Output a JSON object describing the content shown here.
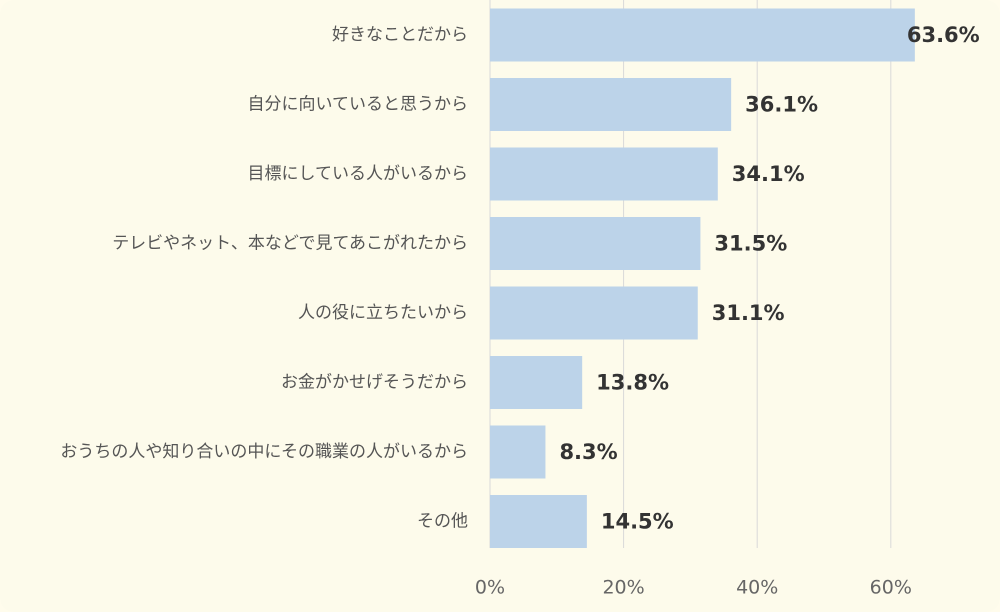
{
  "chart_data": {
    "type": "bar",
    "orientation": "horizontal",
    "categories": [
      "好きなことだから",
      "自分に向いていると思うから",
      "目標にしている人がいるから",
      "テレビやネット、本などで見てあこがれたから",
      "人の役に立ちたいから",
      "お金がかせげそうだから",
      "おうちの人や知り合いの中にその職業の人がいるから",
      "その他"
    ],
    "values": [
      63.6,
      36.1,
      34.1,
      31.5,
      31.1,
      13.8,
      8.3,
      14.5
    ],
    "value_labels": [
      "63.6%",
      "36.1%",
      "34.1%",
      "31.5%",
      "31.1%",
      "13.8%",
      "8.3%",
      "14.5%"
    ],
    "xlim": [
      0,
      70
    ],
    "xticks": [
      0,
      20,
      40,
      60
    ],
    "xtick_labels": [
      "0%",
      "20%",
      "40%",
      "60%"
    ],
    "grid": true,
    "title": "",
    "xlabel": "",
    "ylabel": ""
  },
  "colors": {
    "background": "#fdfbeb",
    "bar": "#bcd3e9",
    "grid": "#d9d9d9"
  }
}
